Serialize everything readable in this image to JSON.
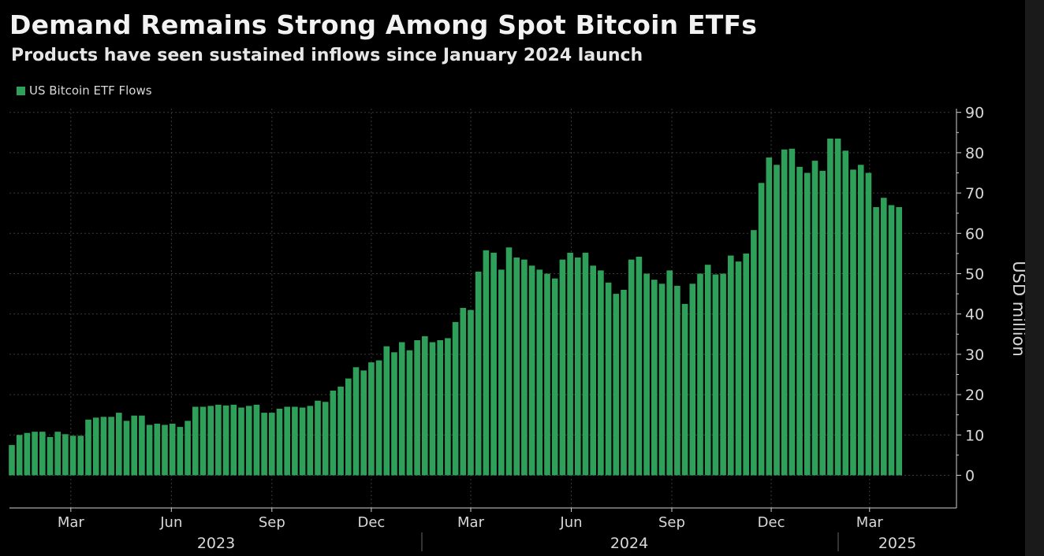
{
  "title": "Demand Remains Strong Among Spot Bitcoin ETFs",
  "subtitle": "Products have seen sustained inflows since January 2024 launch",
  "colors": {
    "bar": "#2fa05a",
    "background": "#000000",
    "grid": "#3a3a3a",
    "axis": "#cfcfcf",
    "text": "#d8d8d8"
  },
  "chart_data": {
    "type": "bar",
    "title": "Demand Remains Strong Among Spot Bitcoin ETFs",
    "subtitle": "Products have seen sustained inflows since January 2024 launch",
    "ylabel": "USD million",
    "ylim": [
      -8,
      90
    ],
    "yticks": [
      0,
      10,
      20,
      30,
      40,
      50,
      60,
      70,
      80,
      90
    ],
    "y_axis_side": "right",
    "grid": true,
    "legend_position": "top-left",
    "series": [
      {
        "name": "US Bitcoin ETF Flows",
        "color": "#2fa05a",
        "frequency": "weekly",
        "start": "2023-01-06",
        "values": [
          7.5,
          10,
          10.5,
          10.8,
          10.8,
          9.5,
          10.8,
          10.2,
          9.8,
          9.8,
          13.8,
          14.3,
          14.5,
          14.5,
          15.5,
          13.5,
          14.8,
          14.8,
          12.5,
          12.8,
          12.5,
          12.8,
          12,
          13.5,
          17,
          17,
          17.2,
          17.5,
          17.3,
          17.5,
          16.8,
          17.2,
          17.5,
          15.5,
          15.5,
          16.5,
          17,
          17,
          16.8,
          17.2,
          18.5,
          18.2,
          21,
          22,
          24,
          26.8,
          26,
          28,
          28.5,
          32,
          30.5,
          33,
          31,
          33.5,
          34.5,
          33,
          33.5,
          34,
          38,
          41.5,
          41,
          50.5,
          55.8,
          55.2,
          51,
          56.5,
          54,
          53.5,
          52,
          51,
          50,
          48.8,
          53.5,
          55.2,
          54,
          55.2,
          52,
          50.8,
          47.8,
          45,
          46,
          53.5,
          54.2,
          50,
          48.5,
          47.5,
          50.8,
          47,
          42.5,
          47.5,
          50,
          52.2,
          49.8,
          50,
          54.5,
          53,
          55,
          60.8,
          72.5,
          78.8,
          77,
          80.8,
          81,
          76.5,
          75,
          78,
          75.5,
          83.5,
          83.5,
          80.5,
          75.8,
          77,
          75,
          66.5,
          68.8,
          67,
          66.5
        ]
      }
    ],
    "x_month_labels": [
      "Mar",
      "Jun",
      "Sep",
      "Dec",
      "Mar",
      "Jun",
      "Sep",
      "Dec",
      "Mar"
    ],
    "x_year_labels": [
      "2023",
      "2024",
      "2025"
    ]
  }
}
